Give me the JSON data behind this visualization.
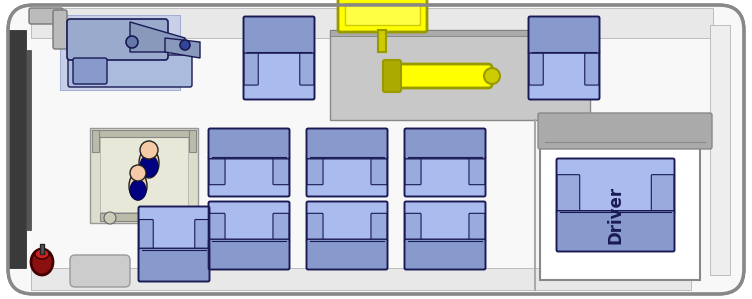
{
  "bg_color": "#ffffff",
  "van_fill": "#f8f8f8",
  "van_edge": "#888888",
  "seat_fill": "#8899cc",
  "seat_edge": "#1a1a55",
  "seat_light": "#aabbee",
  "seat_mid": "#99aadd",
  "dark_panel": "#3a3a3a",
  "dark_panel2": "#555555",
  "yellow": "#ffff00",
  "yellow_edge": "#999900",
  "ramp_fill": "#c8c8c8",
  "ramp_edge": "#888888",
  "wc_bg": "#e0e0d0",
  "wc_frame": "#ccccbb",
  "skin": "#f5cba7",
  "dark_blue": "#000080",
  "driver_text": "Driver",
  "driver_text_color": "#1a1a55",
  "ext_red": "#8b1010",
  "ext_red2": "#cc2020",
  "pipe_gray": "#bbbbbb",
  "wall_gray": "#cccccc",
  "inner_wall": "#e8e8e8"
}
